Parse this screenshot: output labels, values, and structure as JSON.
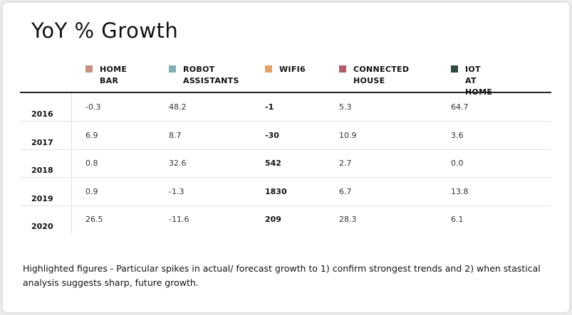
{
  "chart_data": {
    "type": "table",
    "title": "YoY % Growth",
    "columns": [
      {
        "name": "HOME\nBAR",
        "color": "#c8907a"
      },
      {
        "name": "ROBOT\nASSISTANTS",
        "color": "#7fb0b3"
      },
      {
        "name": "WIFI6",
        "color": "#e8a063",
        "highlighted": true
      },
      {
        "name": "CONNECTED\nHOUSE",
        "color": "#b85a6a"
      },
      {
        "name": "IOT AT\nHOME",
        "color": "#2f4a40"
      }
    ],
    "rows": [
      {
        "year": "2016",
        "values": [
          "-0.3",
          "48.2",
          "-1",
          "5.3",
          "64.7"
        ]
      },
      {
        "year": "2017",
        "values": [
          "6.9",
          "8.7",
          "-30",
          "10.9",
          "3.6"
        ]
      },
      {
        "year": "2018",
        "values": [
          "0.8",
          "32.6",
          "542",
          "2.7",
          "0.0"
        ]
      },
      {
        "year": "2019",
        "values": [
          "0.9",
          "-1.3",
          "1830",
          "6.7",
          "13.8"
        ]
      },
      {
        "year": "2020",
        "values": [
          "26.5",
          "-11.6",
          "209",
          "28.3",
          "6.1"
        ]
      }
    ]
  },
  "footnote": "Highlighted figures - Particular spikes in actual/ forecast growth to 1) confirm strongest trends and 2) when stastical analysis suggests sharp, future growth."
}
